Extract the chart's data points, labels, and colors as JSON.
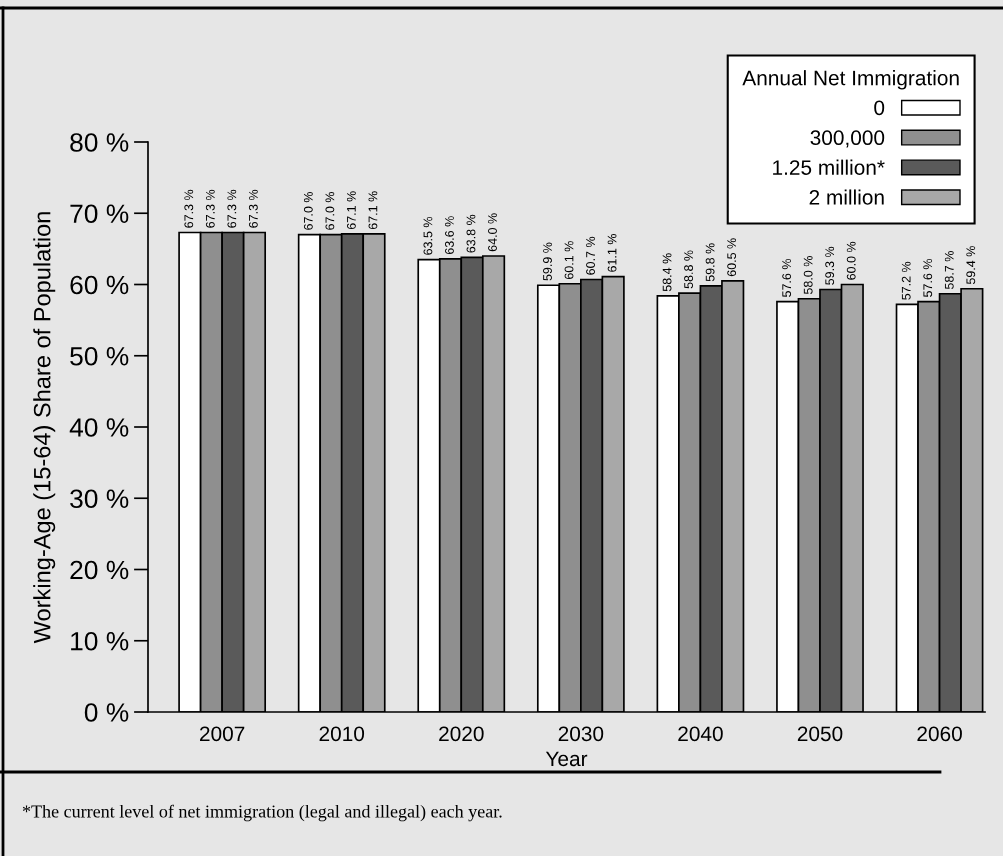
{
  "chart_data": {
    "type": "bar",
    "categories": [
      "2007",
      "2010",
      "2020",
      "2030",
      "2040",
      "2050",
      "2060"
    ],
    "xlabel": "Year",
    "ylabel": "Working-Age (15-64) Share of Population",
    "legend_title": "Annual Net Immigration",
    "legend": "top right",
    "ylim": [
      0,
      80
    ],
    "yticks": [
      {
        "value": 0,
        "label": "0 %"
      },
      {
        "value": 10,
        "label": "10 %"
      },
      {
        "value": 20,
        "label": "20 %"
      },
      {
        "value": 30,
        "label": "30 %"
      },
      {
        "value": 40,
        "label": "40 %"
      },
      {
        "value": 50,
        "label": "50 %"
      },
      {
        "value": 60,
        "label": "60 %"
      },
      {
        "value": 70,
        "label": "70 %"
      },
      {
        "value": 80,
        "label": "80 %"
      }
    ],
    "grid": false,
    "series": [
      {
        "name": "0",
        "color": "#ffffff",
        "values": [
          67.3,
          67.0,
          63.5,
          59.9,
          58.4,
          57.6,
          57.2
        ],
        "value_labels": [
          "67.3 %",
          "67.0 %",
          "63.5 %",
          "59.9 %",
          "58.4 %",
          "57.6 %",
          "57.2 %"
        ]
      },
      {
        "name": "300,000",
        "color": "#8f8f8f",
        "values": [
          67.3,
          67.0,
          63.6,
          60.1,
          58.8,
          58.0,
          57.6
        ],
        "value_labels": [
          "67.3 %",
          "67.0 %",
          "63.6 %",
          "60.1 %",
          "58.8 %",
          "58.0 %",
          "57.6 %"
        ]
      },
      {
        "name": "1.25 million*",
        "color": "#5a5a5a",
        "values": [
          67.3,
          67.1,
          63.8,
          60.7,
          59.8,
          59.3,
          58.7
        ],
        "value_labels": [
          "67.3 %",
          "67.1 %",
          "63.8 %",
          "60.7 %",
          "59.8 %",
          "59.3 %",
          "58.7 %"
        ]
      },
      {
        "name": "2 million",
        "color": "#a8a8a8",
        "values": [
          67.3,
          67.1,
          64.0,
          61.1,
          60.5,
          60.0,
          59.4
        ],
        "value_labels": [
          "67.3 %",
          "67.1 %",
          "64.0 %",
          "61.1 %",
          "60.5 %",
          "60.0 %",
          "59.4 %"
        ]
      }
    ],
    "annotations": [
      "*The current level of net immigration (legal and illegal) each year."
    ]
  }
}
